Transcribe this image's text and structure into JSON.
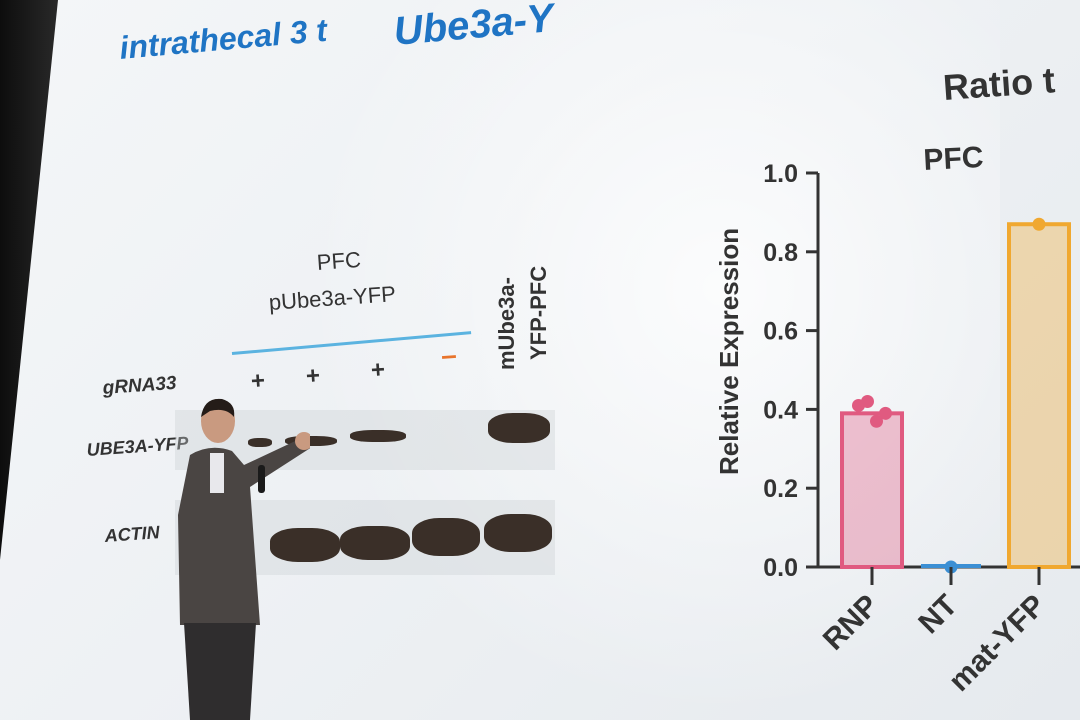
{
  "slide": {
    "title_line1": "intrathecal 3 t",
    "title_line2": "Ube3a-Y"
  },
  "blot": {
    "header_line1": "PFC",
    "header_line2": "pUbe3a-YFP",
    "row_grna": "gRNA33",
    "row_ube3a": "UBE3A-YFP",
    "row_actin": "ACTIN",
    "lane_signs": [
      "+",
      "+",
      "+",
      "–"
    ],
    "control_line1": "mUbe3a-",
    "control_line2": "YFP-PFC"
  },
  "chart_data": {
    "type": "bar",
    "title": "Ratio t",
    "subtitle": "PFC",
    "ylabel": "Relative Expression",
    "ylim": [
      0,
      1.0
    ],
    "yticks": [
      "0.0",
      "0.2",
      "0.4",
      "0.6",
      "0.8",
      "1.0"
    ],
    "categories": [
      "RNP",
      "NT",
      "mat-YFP"
    ],
    "values": [
      0.39,
      0.0,
      0.87
    ],
    "points": [
      [
        0.41,
        0.42,
        0.37,
        0.39
      ],
      [
        0.0
      ],
      [
        0.87
      ]
    ],
    "colors": {
      "RNP": "#e05a80",
      "NT": "#3b8fd4",
      "mat-YFP": "#f0a830"
    }
  }
}
